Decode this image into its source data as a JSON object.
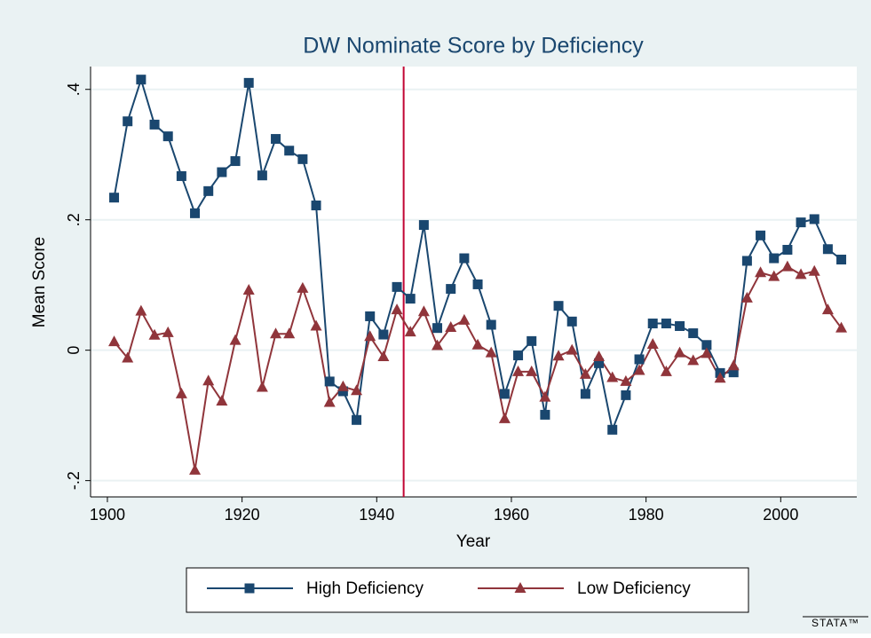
{
  "chart_data": {
    "type": "line",
    "title": "DW Nominate Score by Deficiency",
    "x_label": "Year",
    "y_label": "Mean Score",
    "logo": "STATA™",
    "x": [
      1901,
      1903,
      1905,
      1907,
      1909,
      1911,
      1913,
      1915,
      1917,
      1919,
      1921,
      1923,
      1925,
      1927,
      1929,
      1931,
      1933,
      1935,
      1937,
      1939,
      1941,
      1943,
      1945,
      1947,
      1949,
      1951,
      1953,
      1955,
      1957,
      1959,
      1961,
      1963,
      1965,
      1967,
      1969,
      1971,
      1973,
      1975,
      1977,
      1979,
      1981,
      1983,
      1985,
      1987,
      1989,
      1991,
      1993,
      1995,
      1997,
      1999,
      2001,
      2003,
      2005,
      2007,
      2009
    ],
    "series": [
      {
        "name": "High Deficiency",
        "color": "#1a476f",
        "marker": "square",
        "values": [
          0.234,
          0.351,
          0.415,
          0.346,
          0.328,
          0.267,
          0.21,
          0.244,
          0.273,
          0.29,
          0.41,
          0.268,
          0.324,
          0.306,
          0.293,
          0.222,
          -0.048,
          -0.063,
          -0.107,
          0.052,
          0.024,
          0.097,
          0.079,
          0.192,
          0.034,
          0.094,
          0.141,
          0.101,
          0.039,
          -0.067,
          -0.008,
          0.014,
          -0.099,
          0.068,
          0.044,
          -0.067,
          -0.02,
          -0.122,
          -0.069,
          -0.014,
          0.041,
          0.041,
          0.037,
          0.026,
          0.008,
          -0.035,
          -0.034,
          0.137,
          0.176,
          0.141,
          0.154,
          0.196,
          0.201,
          0.155,
          0.139
        ]
      },
      {
        "name": "Low Deficiency",
        "color": "#90353b",
        "marker": "triangle",
        "values": [
          0.013,
          -0.012,
          0.06,
          0.023,
          0.027,
          -0.067,
          -0.184,
          -0.047,
          -0.078,
          0.015,
          0.092,
          -0.057,
          0.025,
          0.025,
          0.095,
          0.037,
          -0.08,
          -0.056,
          -0.062,
          0.021,
          -0.01,
          0.062,
          0.028,
          0.059,
          0.007,
          0.035,
          0.046,
          0.008,
          -0.004,
          -0.105,
          -0.033,
          -0.033,
          -0.072,
          -0.009,
          0.0,
          -0.037,
          -0.01,
          -0.042,
          -0.048,
          -0.031,
          0.009,
          -0.033,
          -0.004,
          -0.016,
          -0.005,
          -0.043,
          -0.024,
          0.08,
          0.119,
          0.113,
          0.128,
          0.116,
          0.121,
          0.062,
          0.034
        ]
      }
    ],
    "vline": 1944,
    "vline_color": "#c10534",
    "xlim": [
      1897.5,
      2011.3
    ],
    "xticks": [
      1900,
      1920,
      1940,
      1960,
      1980,
      2000
    ],
    "ylim": [
      -0.225,
      0.435
    ],
    "yticks": [
      {
        "value": -0.2,
        "label": "-.2"
      },
      0,
      {
        "value": 0.2,
        "label": ".2"
      },
      {
        "value": 0.4,
        "label": ".4"
      }
    ],
    "grid": true,
    "legend": "bottom"
  }
}
